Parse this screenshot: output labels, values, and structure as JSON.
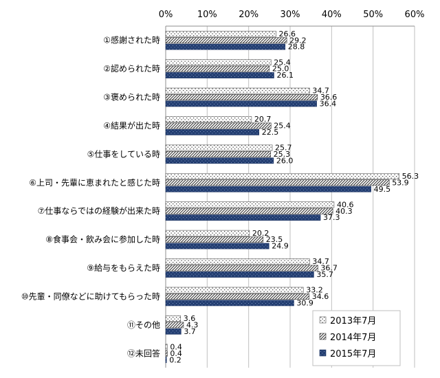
{
  "chart_data": {
    "type": "bar",
    "orientation": "horizontal",
    "categories": [
      "①感謝された時",
      "②認められた時",
      "③褒められた時",
      "④結果が出た時",
      "⑤仕事をしている時",
      "⑥上司・先輩に恵まれたと感じた時",
      "⑦仕事ならではの経験が出来た時",
      "⑧食事会・飲み会に参加した時",
      "⑨給与をもらえた時",
      "⑩先輩・同僚などに助けてもらった時",
      "⑪その他",
      "⑫未回答"
    ],
    "series": [
      {
        "name": "2013年7月",
        "values": [
          26.6,
          25.4,
          34.7,
          20.7,
          25.7,
          56.3,
          40.6,
          20.2,
          34.7,
          33.2,
          3.6,
          0.4
        ]
      },
      {
        "name": "2014年7月",
        "values": [
          29.2,
          25.0,
          36.6,
          25.4,
          25.3,
          53.9,
          40.3,
          23.5,
          36.7,
          34.6,
          4.3,
          0.4
        ]
      },
      {
        "name": "2015年7月",
        "values": [
          28.8,
          26.1,
          36.4,
          22.5,
          26.0,
          49.5,
          37.3,
          24.9,
          35.7,
          30.9,
          3.7,
          0.2
        ]
      }
    ],
    "xlim": [
      0,
      60
    ],
    "xticks": [
      "0%",
      "10%",
      "20%",
      "30%",
      "40%",
      "50%",
      "60%"
    ],
    "xaxis_position": "top",
    "grid": true,
    "legend_position": "bottom-right",
    "colors": {
      "grid": "#bfbfbf",
      "s2015": "#243f72",
      "border": "#7f7f7f"
    }
  }
}
